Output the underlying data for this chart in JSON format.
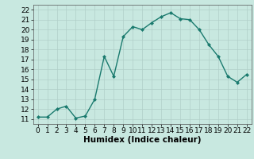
{
  "x": [
    0,
    1,
    2,
    3,
    4,
    5,
    6,
    7,
    8,
    9,
    10,
    11,
    12,
    13,
    14,
    15,
    16,
    17,
    18,
    19,
    20,
    21,
    22
  ],
  "y": [
    11.2,
    11.2,
    12.0,
    12.3,
    11.1,
    11.3,
    13.0,
    17.3,
    15.3,
    19.3,
    20.3,
    20.0,
    20.7,
    21.3,
    21.7,
    21.1,
    21.0,
    20.0,
    18.5,
    17.3,
    15.3,
    14.7,
    15.5
  ],
  "xlabel": "Humidex (Indice chaleur)",
  "ylim": [
    10.5,
    22.5
  ],
  "xlim": [
    -0.5,
    22.5
  ],
  "yticks": [
    11,
    12,
    13,
    14,
    15,
    16,
    17,
    18,
    19,
    20,
    21,
    22
  ],
  "xticks": [
    0,
    1,
    2,
    3,
    4,
    5,
    6,
    7,
    8,
    9,
    10,
    11,
    12,
    13,
    14,
    15,
    16,
    17,
    18,
    19,
    20,
    21,
    22
  ],
  "xtick_labels": [
    "0",
    "1",
    "2",
    "3",
    "4",
    "5",
    "6",
    "7",
    "8",
    "9",
    "10",
    "11",
    "12",
    "13",
    "14",
    "15",
    "16",
    "17",
    "18",
    "19",
    "20",
    "21",
    "22"
  ],
  "line_color": "#1a7a6e",
  "marker_color": "#1a7a6e",
  "bg_color": "#c8e8e0",
  "grid_color": "#b0cfc8",
  "tick_label_fontsize": 6.5,
  "xlabel_fontsize": 7.5
}
